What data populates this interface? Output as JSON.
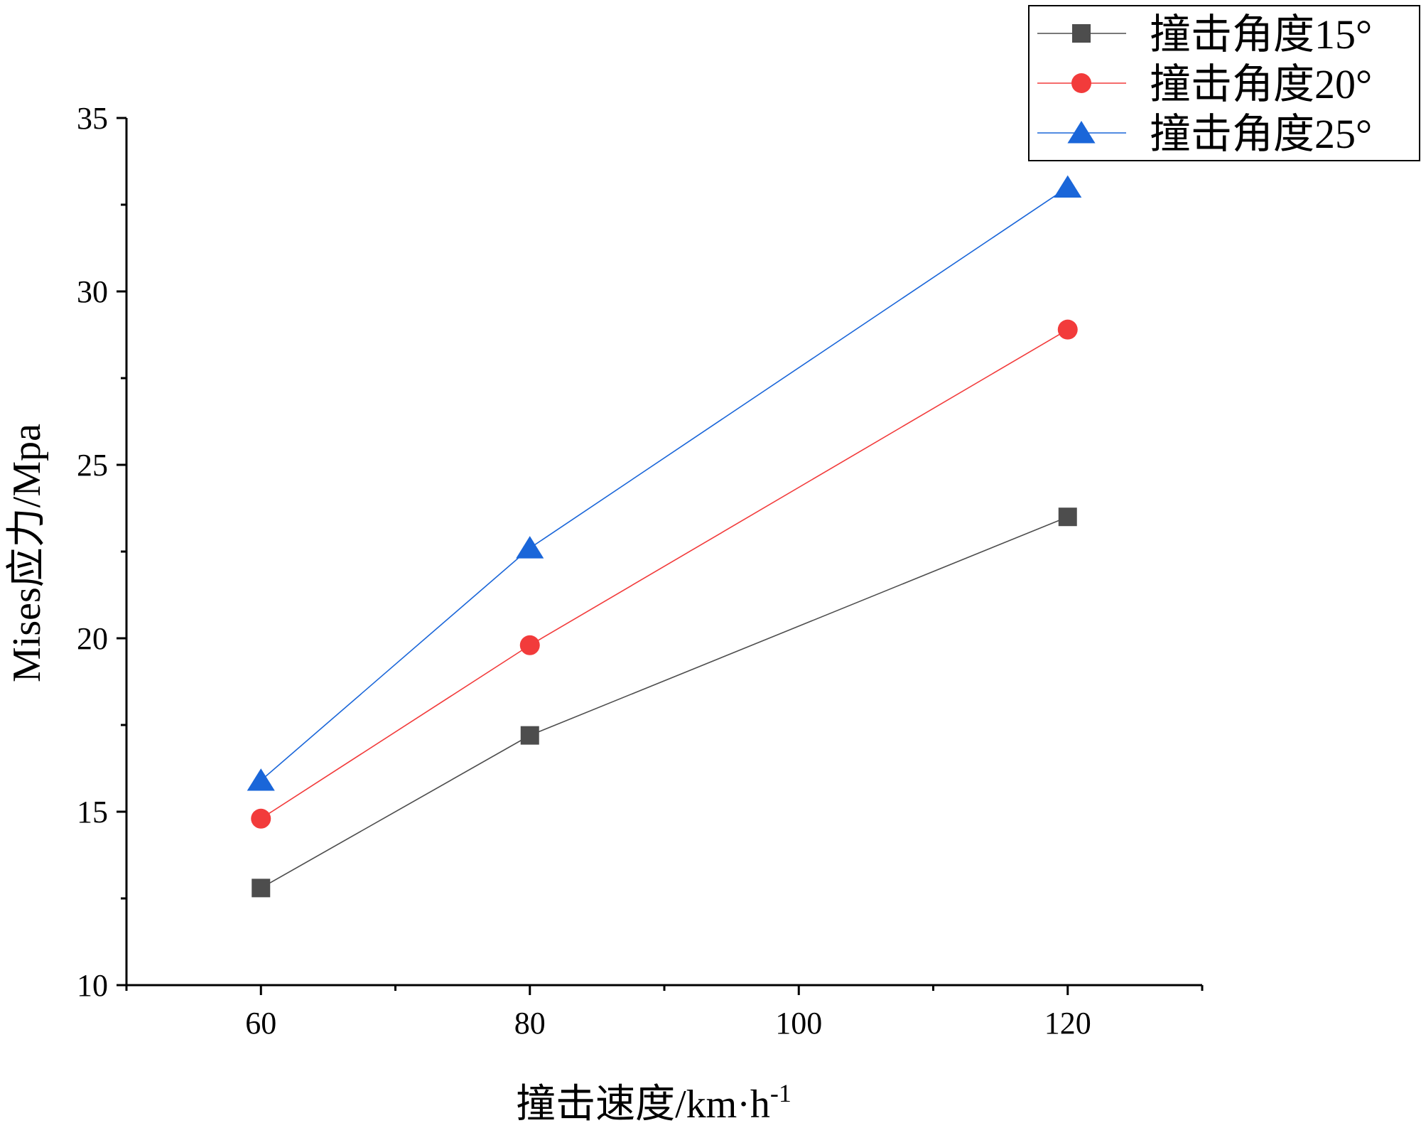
{
  "chart_data": {
    "type": "line",
    "xlabel": "撞击速度/km·h",
    "xlabel_sup": "-1",
    "ylabel": "Mises应力/Mpa",
    "xlim": [
      50,
      130
    ],
    "ylim": [
      10,
      35
    ],
    "x_ticks": [
      "60",
      "80",
      "100",
      "120"
    ],
    "y_ticks": [
      "10",
      "15",
      "20",
      "25",
      "30",
      "35"
    ],
    "x": [
      60,
      80,
      120
    ],
    "series": [
      {
        "name": "撞击角度15°",
        "values": [
          12.8,
          17.2,
          23.5
        ],
        "color": "#4d4d4d",
        "marker": "square"
      },
      {
        "name": "撞击角度20°",
        "values": [
          14.8,
          19.8,
          28.9
        ],
        "color": "#f23b3b",
        "marker": "circle"
      },
      {
        "name": "撞击角度25°",
        "values": [
          15.9,
          22.6,
          33.0
        ],
        "color": "#1a66d9",
        "marker": "triangle"
      }
    ],
    "grid": false,
    "legend_position": "top-right"
  }
}
